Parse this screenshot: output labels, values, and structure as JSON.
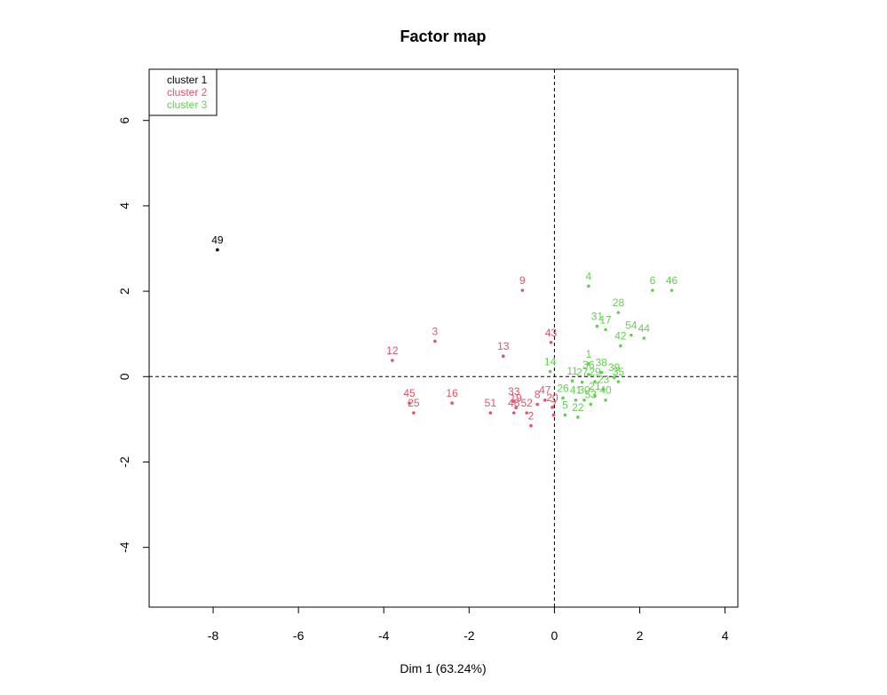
{
  "chart_data": {
    "type": "scatter",
    "title": "Factor map",
    "xlabel": "Dim 1 (63.24%)",
    "ylabel": "",
    "xlim": [
      -9.5,
      4.3
    ],
    "ylim": [
      -5.4,
      7.2
    ],
    "x_ticks": [
      -8,
      -6,
      -4,
      -2,
      0,
      2,
      4
    ],
    "y_ticks": [
      -4,
      -2,
      0,
      2,
      4,
      6
    ],
    "x_tick_labels": [
      "-8",
      "-6",
      "-4",
      "-2",
      "0",
      "2",
      "4"
    ],
    "y_tick_labels": [
      "-4",
      "-2",
      "0",
      "2",
      "4",
      "6"
    ],
    "reference_lines": {
      "x": 0,
      "y": 0,
      "style": "dashed"
    },
    "grid": false,
    "legend": {
      "position": "top-left",
      "entries": [
        {
          "label": "cluster 1",
          "color": "#000000"
        },
        {
          "label": "cluster 2",
          "color": "#DF536B"
        },
        {
          "label": "cluster 3",
          "color": "#61D04F"
        }
      ]
    },
    "series": [
      {
        "name": "cluster 1",
        "color": "#000000",
        "points": [
          {
            "label": "49",
            "x": -7.9,
            "y": 2.97
          }
        ]
      },
      {
        "name": "cluster 2",
        "color": "#DF536B",
        "points": [
          {
            "label": "9",
            "x": -0.75,
            "y": 2.02
          },
          {
            "label": "3",
            "x": -2.8,
            "y": 0.83
          },
          {
            "label": "12",
            "x": -3.8,
            "y": 0.38
          },
          {
            "label": "13",
            "x": -1.2,
            "y": 0.48
          },
          {
            "label": "43",
            "x": -0.08,
            "y": 0.8
          },
          {
            "label": "16",
            "x": -2.4,
            "y": -0.62
          },
          {
            "label": "45",
            "x": -3.4,
            "y": -0.62
          },
          {
            "label": "25",
            "x": -3.3,
            "y": -0.85
          },
          {
            "label": "51",
            "x": -1.5,
            "y": -0.85
          },
          {
            "label": "33",
            "x": -0.95,
            "y": -0.58
          },
          {
            "label": "19",
            "x": -0.9,
            "y": -0.73
          },
          {
            "label": "48",
            "x": -0.95,
            "y": -0.85
          },
          {
            "label": "52",
            "x": -0.65,
            "y": -0.85
          },
          {
            "label": "2",
            "x": -0.55,
            "y": -1.15
          },
          {
            "label": "8",
            "x": -0.4,
            "y": -0.65
          },
          {
            "label": "47",
            "x": -0.22,
            "y": -0.55
          },
          {
            "label": "20",
            "x": -0.05,
            "y": -0.72
          },
          {
            "label": "7",
            "x": -0.02,
            "y": -0.9
          }
        ]
      },
      {
        "name": "cluster 3",
        "color": "#61D04F",
        "points": [
          {
            "label": "4",
            "x": 0.8,
            "y": 2.12
          },
          {
            "label": "6",
            "x": 2.3,
            "y": 2.02
          },
          {
            "label": "46",
            "x": 2.75,
            "y": 2.02
          },
          {
            "label": "28",
            "x": 1.5,
            "y": 1.5
          },
          {
            "label": "31",
            "x": 1.0,
            "y": 1.18
          },
          {
            "label": "17",
            "x": 1.2,
            "y": 1.1
          },
          {
            "label": "54",
            "x": 1.8,
            "y": 0.97
          },
          {
            "label": "44",
            "x": 2.1,
            "y": 0.9
          },
          {
            "label": "42",
            "x": 1.55,
            "y": 0.72
          },
          {
            "label": "1",
            "x": 0.8,
            "y": 0.3
          },
          {
            "label": "14",
            "x": -0.1,
            "y": 0.12
          },
          {
            "label": "38",
            "x": 1.1,
            "y": 0.1
          },
          {
            "label": "36",
            "x": 0.8,
            "y": 0.05
          },
          {
            "label": "39",
            "x": 1.4,
            "y": -0.02
          },
          {
            "label": "11",
            "x": 0.42,
            "y": -0.1
          },
          {
            "label": "27",
            "x": 0.65,
            "y": -0.13
          },
          {
            "label": "29",
            "x": 0.95,
            "y": -0.12
          },
          {
            "label": "35",
            "x": 1.5,
            "y": -0.12
          },
          {
            "label": "23",
            "x": 1.15,
            "y": -0.3
          },
          {
            "label": "26",
            "x": 0.2,
            "y": -0.5
          },
          {
            "label": "41",
            "x": 0.5,
            "y": -0.55
          },
          {
            "label": "40",
            "x": 1.2,
            "y": -0.55
          },
          {
            "label": "53",
            "x": 0.85,
            "y": -0.65
          },
          {
            "label": "30",
            "x": 0.7,
            "y": -0.55
          },
          {
            "label": "22",
            "x": 0.55,
            "y": -0.95
          },
          {
            "label": "5",
            "x": 0.25,
            "y": -0.9
          },
          {
            "label": "21",
            "x": 0.95,
            "y": -0.45
          }
        ]
      }
    ]
  }
}
